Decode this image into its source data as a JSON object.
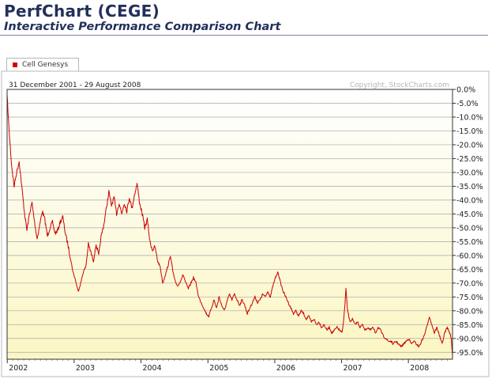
{
  "header": {
    "title": "PerfChart (CEGE)",
    "subtitle": "Interactive Performance Comparison Chart"
  },
  "colors": {
    "series": "#cc0000",
    "title": "#23305b",
    "plot_top": "#ffffff",
    "plot_bottom": "#fbf7c8",
    "grid": "#9a9a9a"
  },
  "chart_data": {
    "type": "line",
    "date_range_label": "31 December 2001 - 29 August 2008",
    "copyright": "Copyright, StockCharts.com",
    "ylabel_side": "right",
    "ylim": [
      -97.5,
      0
    ],
    "y_ticks": [
      0,
      -5,
      -10,
      -15,
      -20,
      -25,
      -30,
      -35,
      -40,
      -45,
      -50,
      -55,
      -60,
      -65,
      -70,
      -75,
      -80,
      -85,
      -90,
      -95
    ],
    "y_tick_labels": [
      "0.0%",
      "-5.0%",
      "-10.0%",
      "-15.0%",
      "-20.0%",
      "-25.0%",
      "-30.0%",
      "-35.0%",
      "-40.0%",
      "-45.0%",
      "-50.0%",
      "-55.0%",
      "-60.0%",
      "-65.0%",
      "-70.0%",
      "-75.0%",
      "-80.0%",
      "-85.0%",
      "-90.0%",
      "-95.0%"
    ],
    "x_range": [
      "2001-12-31",
      "2008-08-29"
    ],
    "x_tick_labels": [
      "2002",
      "2003",
      "2004",
      "2005",
      "2006",
      "2007",
      "2008"
    ],
    "grid": true,
    "legend": [
      "Cell Genesys"
    ],
    "series": [
      {
        "name": "Cell Genesys",
        "color": "#cc0000",
        "points": [
          [
            "2001-12-31",
            -2
          ],
          [
            "2002-01-10",
            -14
          ],
          [
            "2002-01-24",
            -27
          ],
          [
            "2002-02-07",
            -35
          ],
          [
            "2002-02-21",
            -30
          ],
          [
            "2002-03-07",
            -26
          ],
          [
            "2002-03-21",
            -35
          ],
          [
            "2002-04-04",
            -44
          ],
          [
            "2002-04-18",
            -51
          ],
          [
            "2002-05-02",
            -45
          ],
          [
            "2002-05-16",
            -41
          ],
          [
            "2002-05-30",
            -48
          ],
          [
            "2002-06-13",
            -54
          ],
          [
            "2002-06-27",
            -49
          ],
          [
            "2002-07-11",
            -44
          ],
          [
            "2002-07-25",
            -47
          ],
          [
            "2002-08-08",
            -53
          ],
          [
            "2002-08-22",
            -50
          ],
          [
            "2002-09-05",
            -48
          ],
          [
            "2002-09-19",
            -52
          ],
          [
            "2002-10-03",
            -51
          ],
          [
            "2002-10-17",
            -48
          ],
          [
            "2002-10-31",
            -46
          ],
          [
            "2002-11-14",
            -52
          ],
          [
            "2002-11-28",
            -56
          ],
          [
            "2002-12-12",
            -61
          ],
          [
            "2002-12-26",
            -66
          ],
          [
            "2003-01-09",
            -69
          ],
          [
            "2003-01-23",
            -73
          ],
          [
            "2003-02-06",
            -70
          ],
          [
            "2003-02-20",
            -66
          ],
          [
            "2003-03-06",
            -64
          ],
          [
            "2003-03-20",
            -56
          ],
          [
            "2003-04-03",
            -59
          ],
          [
            "2003-04-17",
            -62
          ],
          [
            "2003-05-01",
            -56
          ],
          [
            "2003-05-15",
            -60
          ],
          [
            "2003-05-29",
            -53
          ],
          [
            "2003-06-12",
            -49
          ],
          [
            "2003-06-26",
            -43
          ],
          [
            "2003-07-10",
            -37
          ],
          [
            "2003-07-24",
            -42
          ],
          [
            "2003-08-07",
            -39
          ],
          [
            "2003-08-21",
            -45
          ],
          [
            "2003-09-04",
            -41
          ],
          [
            "2003-09-18",
            -45
          ],
          [
            "2003-10-02",
            -41
          ],
          [
            "2003-10-16",
            -44
          ],
          [
            "2003-10-30",
            -39
          ],
          [
            "2003-11-13",
            -43
          ],
          [
            "2003-11-27",
            -38
          ],
          [
            "2003-12-11",
            -34
          ],
          [
            "2003-12-25",
            -41
          ],
          [
            "2004-01-08",
            -45
          ],
          [
            "2004-01-22",
            -50
          ],
          [
            "2004-02-05",
            -47
          ],
          [
            "2004-02-19",
            -55
          ],
          [
            "2004-03-04",
            -58
          ],
          [
            "2004-03-18",
            -57
          ],
          [
            "2004-04-01",
            -62
          ],
          [
            "2004-04-15",
            -64
          ],
          [
            "2004-04-29",
            -70
          ],
          [
            "2004-05-13",
            -67
          ],
          [
            "2004-05-27",
            -64
          ],
          [
            "2004-06-10",
            -60
          ],
          [
            "2004-06-24",
            -66
          ],
          [
            "2004-07-08",
            -70
          ],
          [
            "2004-07-22",
            -71
          ],
          [
            "2004-08-05",
            -69
          ],
          [
            "2004-08-19",
            -67
          ],
          [
            "2004-09-02",
            -70
          ],
          [
            "2004-09-16",
            -72
          ],
          [
            "2004-09-30",
            -70
          ],
          [
            "2004-10-14",
            -68
          ],
          [
            "2004-10-28",
            -70
          ],
          [
            "2004-11-11",
            -75
          ],
          [
            "2004-11-25",
            -77
          ],
          [
            "2004-12-09",
            -79
          ],
          [
            "2004-12-23",
            -81
          ],
          [
            "2005-01-06",
            -82
          ],
          [
            "2005-01-20",
            -79
          ],
          [
            "2005-02-03",
            -76
          ],
          [
            "2005-02-17",
            -79
          ],
          [
            "2005-03-03",
            -75
          ],
          [
            "2005-03-17",
            -78
          ],
          [
            "2005-03-31",
            -80
          ],
          [
            "2005-04-14",
            -77
          ],
          [
            "2005-04-28",
            -74
          ],
          [
            "2005-05-12",
            -76
          ],
          [
            "2005-05-26",
            -74
          ],
          [
            "2005-06-09",
            -76
          ],
          [
            "2005-06-23",
            -78
          ],
          [
            "2005-07-07",
            -76
          ],
          [
            "2005-07-21",
            -78
          ],
          [
            "2005-08-04",
            -81
          ],
          [
            "2005-08-18",
            -79
          ],
          [
            "2005-09-01",
            -77
          ],
          [
            "2005-09-15",
            -75
          ],
          [
            "2005-09-29",
            -77
          ],
          [
            "2005-10-13",
            -76
          ],
          [
            "2005-10-27",
            -74
          ],
          [
            "2005-11-10",
            -75
          ],
          [
            "2005-11-24",
            -73
          ],
          [
            "2005-12-08",
            -75
          ],
          [
            "2005-12-22",
            -71
          ],
          [
            "2006-01-05",
            -68
          ],
          [
            "2006-01-19",
            -66
          ],
          [
            "2006-02-02",
            -70
          ],
          [
            "2006-02-16",
            -73
          ],
          [
            "2006-03-02",
            -75
          ],
          [
            "2006-03-16",
            -77
          ],
          [
            "2006-03-30",
            -79
          ],
          [
            "2006-04-13",
            -81
          ],
          [
            "2006-04-27",
            -80
          ],
          [
            "2006-05-11",
            -82
          ],
          [
            "2006-05-25",
            -80
          ],
          [
            "2006-06-08",
            -81
          ],
          [
            "2006-06-22",
            -83
          ],
          [
            "2006-07-06",
            -82
          ],
          [
            "2006-07-20",
            -84
          ],
          [
            "2006-08-03",
            -83
          ],
          [
            "2006-08-17",
            -85
          ],
          [
            "2006-08-31",
            -84
          ],
          [
            "2006-09-14",
            -86
          ],
          [
            "2006-09-28",
            -85
          ],
          [
            "2006-10-12",
            -87
          ],
          [
            "2006-10-26",
            -86
          ],
          [
            "2006-11-09",
            -88
          ],
          [
            "2006-11-23",
            -87
          ],
          [
            "2006-12-07",
            -86
          ],
          [
            "2006-12-21",
            -87
          ],
          [
            "2007-01-04",
            -88
          ],
          [
            "2007-01-11",
            -84
          ],
          [
            "2007-01-18",
            -79
          ],
          [
            "2007-01-25",
            -72
          ],
          [
            "2007-02-01",
            -79
          ],
          [
            "2007-02-15",
            -84
          ],
          [
            "2007-03-01",
            -83
          ],
          [
            "2007-03-15",
            -85
          ],
          [
            "2007-03-29",
            -84
          ],
          [
            "2007-04-12",
            -86
          ],
          [
            "2007-04-26",
            -85
          ],
          [
            "2007-05-10",
            -87
          ],
          [
            "2007-05-24",
            -86
          ],
          [
            "2007-06-07",
            -87
          ],
          [
            "2007-06-21",
            -86
          ],
          [
            "2007-07-05",
            -88
          ],
          [
            "2007-07-19",
            -86
          ],
          [
            "2007-08-02",
            -87
          ],
          [
            "2007-08-16",
            -89
          ],
          [
            "2007-08-30",
            -90
          ],
          [
            "2007-09-13",
            -91
          ],
          [
            "2007-09-27",
            -91
          ],
          [
            "2007-10-11",
            -92
          ],
          [
            "2007-10-25",
            -91
          ],
          [
            "2007-11-08",
            -92
          ],
          [
            "2007-11-22",
            -93
          ],
          [
            "2007-12-06",
            -92
          ],
          [
            "2007-12-20",
            -91
          ],
          [
            "2008-01-03",
            -90
          ],
          [
            "2008-01-17",
            -92
          ],
          [
            "2008-01-31",
            -91
          ],
          [
            "2008-02-14",
            -92
          ],
          [
            "2008-02-28",
            -93
          ],
          [
            "2008-03-13",
            -91
          ],
          [
            "2008-03-27",
            -89
          ],
          [
            "2008-04-10",
            -86
          ],
          [
            "2008-04-24",
            -82
          ],
          [
            "2008-05-08",
            -85
          ],
          [
            "2008-05-22",
            -88
          ],
          [
            "2008-06-05",
            -86
          ],
          [
            "2008-06-19",
            -89
          ],
          [
            "2008-07-03",
            -92
          ],
          [
            "2008-07-17",
            -88
          ],
          [
            "2008-07-31",
            -86
          ],
          [
            "2008-08-14",
            -88
          ],
          [
            "2008-08-22",
            -90
          ],
          [
            "2008-08-29",
            -96
          ]
        ]
      }
    ]
  }
}
